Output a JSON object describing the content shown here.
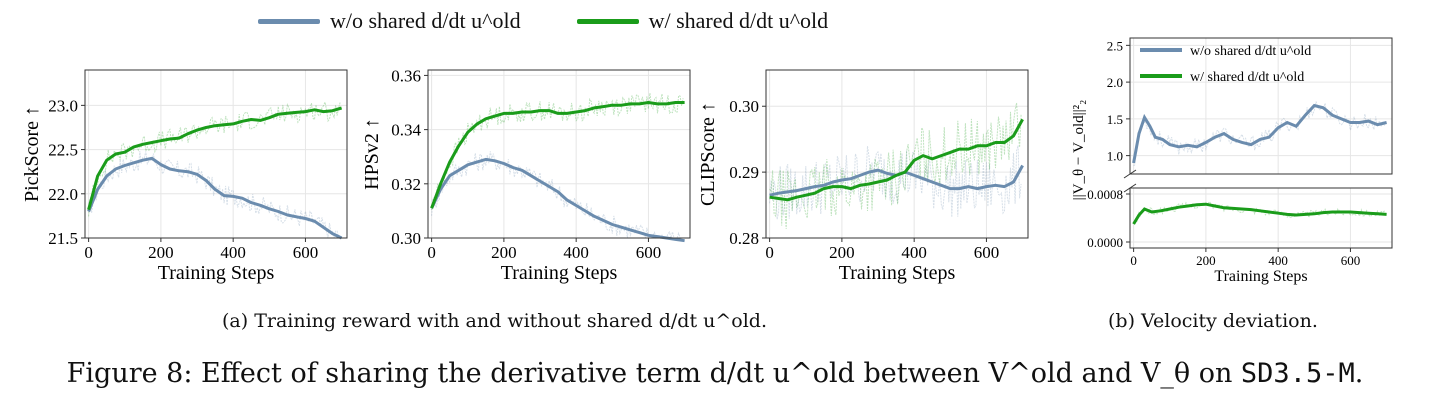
{
  "legend": [
    {
      "label": "w/o shared d/dt u^old",
      "color": "#6b8cae"
    },
    {
      "label": "w/ shared d/dt u^old",
      "color": "#1a9c1a"
    }
  ],
  "captions": {
    "a": "(a) Training reward with and without shared d/dt u^old.",
    "b": "(b) Velocity deviation.",
    "figure_prefix": "Figure 8: Effect of sharing the derivative term d/dt u^old between V^old and V_θ on ",
    "figure_code": "SD3.5-M",
    "figure_end": "."
  },
  "chart_data": [
    {
      "type": "line",
      "xlabel": "Training Steps",
      "ylabel": "PickScore ↑",
      "xticks": [
        "0",
        "200",
        "400",
        "600"
      ],
      "yticks": [
        "21.5",
        "22.0",
        "22.5",
        "23.0"
      ],
      "xlim": [
        -10,
        715
      ],
      "ylim": [
        21.5,
        23.4
      ],
      "grid": true,
      "series": [
        {
          "name": "w/o shared d/dt u^old",
          "color": "#6b8cae",
          "x": [
            0,
            25,
            50,
            75,
            100,
            125,
            150,
            175,
            200,
            225,
            250,
            275,
            300,
            325,
            350,
            375,
            400,
            425,
            450,
            475,
            500,
            525,
            550,
            575,
            600,
            625,
            650,
            675,
            700
          ],
          "y": [
            21.8,
            22.05,
            22.2,
            22.28,
            22.32,
            22.35,
            22.38,
            22.4,
            22.33,
            22.28,
            22.26,
            22.25,
            22.22,
            22.15,
            22.05,
            21.98,
            21.97,
            21.95,
            21.9,
            21.87,
            21.83,
            21.8,
            21.76,
            21.74,
            21.72,
            21.69,
            21.62,
            21.55,
            21.5
          ]
        },
        {
          "name": "w/ shared d/dt u^old",
          "color": "#1a9c1a",
          "x": [
            0,
            25,
            50,
            75,
            100,
            125,
            150,
            175,
            200,
            225,
            250,
            275,
            300,
            325,
            350,
            375,
            400,
            425,
            450,
            475,
            500,
            525,
            550,
            575,
            600,
            625,
            650,
            675,
            700
          ],
          "y": [
            21.82,
            22.2,
            22.38,
            22.45,
            22.47,
            22.53,
            22.56,
            22.58,
            22.6,
            22.62,
            22.63,
            22.68,
            22.72,
            22.75,
            22.77,
            22.78,
            22.79,
            22.82,
            22.84,
            22.83,
            22.86,
            22.9,
            22.91,
            22.92,
            22.93,
            22.95,
            22.93,
            22.94,
            22.97
          ]
        }
      ]
    },
    {
      "type": "line",
      "xlabel": "Training Steps",
      "ylabel": "HPSv2 ↑",
      "xticks": [
        "0",
        "200",
        "400",
        "600"
      ],
      "yticks": [
        "0.30",
        "0.32",
        "0.34",
        "0.36"
      ],
      "xlim": [
        -10,
        715
      ],
      "ylim": [
        0.3,
        0.362
      ],
      "grid": true,
      "series": [
        {
          "name": "w/o shared d/dt u^old",
          "color": "#6b8cae",
          "x": [
            0,
            25,
            50,
            75,
            100,
            125,
            150,
            175,
            200,
            225,
            250,
            275,
            300,
            325,
            350,
            375,
            400,
            425,
            450,
            475,
            500,
            525,
            550,
            575,
            600,
            625,
            650,
            675,
            700
          ],
          "y": [
            0.311,
            0.318,
            0.323,
            0.325,
            0.327,
            0.328,
            0.329,
            0.3285,
            0.3275,
            0.326,
            0.325,
            0.323,
            0.321,
            0.319,
            0.317,
            0.314,
            0.312,
            0.31,
            0.308,
            0.3065,
            0.305,
            0.304,
            0.303,
            0.302,
            0.301,
            0.3005,
            0.3,
            0.2995,
            0.299
          ]
        },
        {
          "name": "w/ shared d/dt u^old",
          "color": "#1a9c1a",
          "x": [
            0,
            25,
            50,
            75,
            100,
            125,
            150,
            175,
            200,
            225,
            250,
            275,
            300,
            325,
            350,
            375,
            400,
            425,
            450,
            475,
            500,
            525,
            550,
            575,
            600,
            625,
            650,
            675,
            700
          ],
          "y": [
            0.311,
            0.32,
            0.328,
            0.334,
            0.339,
            0.342,
            0.344,
            0.345,
            0.346,
            0.346,
            0.3465,
            0.3465,
            0.347,
            0.347,
            0.346,
            0.346,
            0.3465,
            0.347,
            0.348,
            0.3485,
            0.349,
            0.349,
            0.3495,
            0.3495,
            0.35,
            0.3495,
            0.3495,
            0.35,
            0.35
          ]
        }
      ]
    },
    {
      "type": "line",
      "xlabel": "Training Steps",
      "ylabel": "CLIPScore ↑",
      "xticks": [
        "0",
        "200",
        "400",
        "600"
      ],
      "yticks": [
        "0.28",
        "0.29",
        "0.30"
      ],
      "xlim": [
        -10,
        715
      ],
      "ylim": [
        0.28,
        0.3055
      ],
      "grid": true,
      "series": [
        {
          "name": "w/o shared d/dt u^old",
          "color": "#6b8cae",
          "x": [
            0,
            25,
            50,
            75,
            100,
            125,
            150,
            175,
            200,
            225,
            250,
            275,
            300,
            325,
            350,
            375,
            400,
            425,
            450,
            475,
            500,
            525,
            550,
            575,
            600,
            625,
            650,
            675,
            700
          ],
          "y": [
            0.2865,
            0.2868,
            0.287,
            0.2872,
            0.2875,
            0.2878,
            0.288,
            0.2885,
            0.2888,
            0.289,
            0.2895,
            0.29,
            0.2903,
            0.2898,
            0.2895,
            0.29,
            0.2895,
            0.289,
            0.2885,
            0.288,
            0.2875,
            0.2875,
            0.2878,
            0.2875,
            0.2878,
            0.288,
            0.2878,
            0.2885,
            0.291
          ]
        },
        {
          "name": "w/ shared d/dt u^old",
          "color": "#1a9c1a",
          "x": [
            0,
            25,
            50,
            75,
            100,
            125,
            150,
            175,
            200,
            225,
            250,
            275,
            300,
            325,
            350,
            375,
            400,
            425,
            450,
            475,
            500,
            525,
            550,
            575,
            600,
            625,
            650,
            675,
            700
          ],
          "y": [
            0.2862,
            0.286,
            0.2858,
            0.2862,
            0.2865,
            0.2868,
            0.2875,
            0.2878,
            0.2878,
            0.2875,
            0.288,
            0.2882,
            0.2885,
            0.2888,
            0.2895,
            0.29,
            0.2918,
            0.2925,
            0.292,
            0.2925,
            0.293,
            0.2935,
            0.2935,
            0.294,
            0.294,
            0.2945,
            0.2945,
            0.2955,
            0.298
          ]
        }
      ]
    },
    {
      "type": "line",
      "xlabel": "Training Steps",
      "ylabel": "||V_θ − V_old||²₂",
      "xticks": [
        "0",
        "200",
        "400",
        "600"
      ],
      "broken_axis": true,
      "upper": {
        "yticks": [
          "1.0",
          "1.5",
          "2.0",
          "2.5"
        ],
        "ylim": [
          0.75,
          2.6
        ],
        "series": [
          {
            "name": "w/o shared d/dt u^old",
            "color": "#6b8cae",
            "x": [
              0,
              15,
              30,
              45,
              60,
              80,
              100,
              125,
              150,
              175,
              200,
              225,
              250,
              275,
              300,
              325,
              350,
              375,
              400,
              425,
              450,
              475,
              500,
              525,
              550,
              575,
              600,
              625,
              650,
              675,
              700
            ],
            "y": [
              0.9,
              1.3,
              1.52,
              1.4,
              1.25,
              1.22,
              1.15,
              1.12,
              1.14,
              1.12,
              1.18,
              1.25,
              1.3,
              1.22,
              1.18,
              1.15,
              1.22,
              1.25,
              1.38,
              1.45,
              1.4,
              1.55,
              1.68,
              1.65,
              1.55,
              1.5,
              1.45,
              1.45,
              1.47,
              1.42,
              1.45
            ]
          }
        ]
      },
      "lower": {
        "yticks": [
          "0.0000",
          "0.0008"
        ],
        "ylim": [
          -0.0001,
          0.0009
        ],
        "series": [
          {
            "name": "w/ shared d/dt u^old",
            "color": "#1a9c1a",
            "x": [
              0,
              15,
              30,
              50,
              75,
              100,
              125,
              150,
              175,
              200,
              225,
              250,
              275,
              300,
              325,
              350,
              375,
              400,
              425,
              450,
              475,
              500,
              525,
              550,
              575,
              600,
              625,
              650,
              675,
              700
            ],
            "y": [
              0.0003,
              0.00045,
              0.00055,
              0.0005,
              0.00052,
              0.00055,
              0.00058,
              0.0006,
              0.00062,
              0.00063,
              0.0006,
              0.00057,
              0.00056,
              0.00055,
              0.00054,
              0.00052,
              0.0005,
              0.00048,
              0.00046,
              0.00045,
              0.00046,
              0.00047,
              0.00049,
              0.0005,
              0.0005,
              0.0005,
              0.00049,
              0.00048,
              0.00047,
              0.00046
            ]
          }
        ]
      },
      "legend": [
        "w/o shared d/dt u^old",
        "w/ shared d/dt u^old"
      ]
    }
  ]
}
